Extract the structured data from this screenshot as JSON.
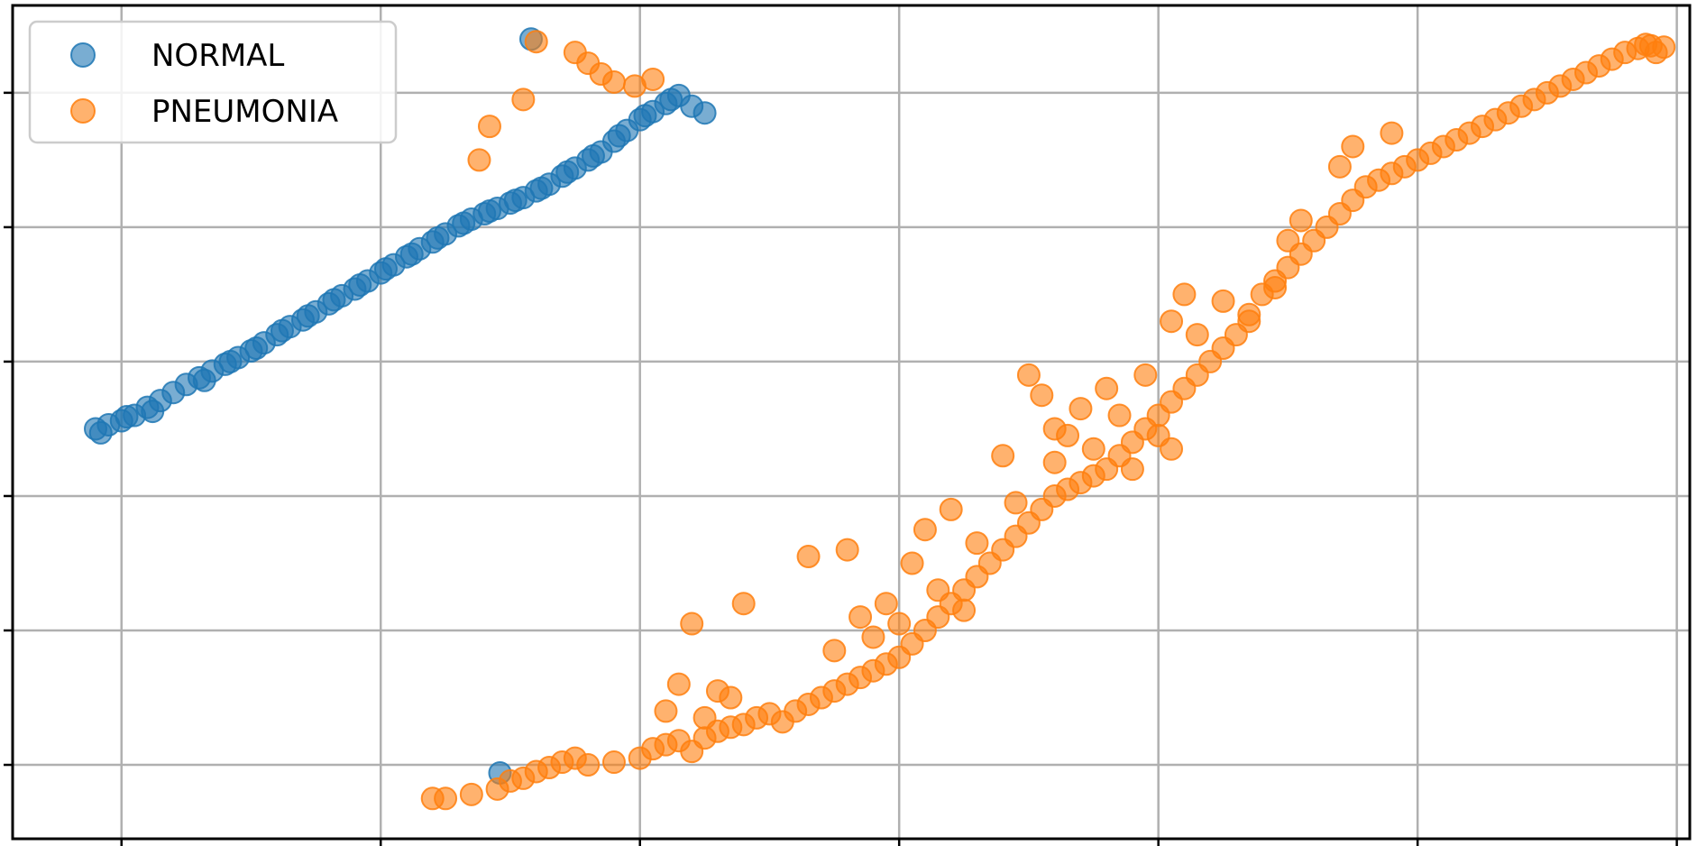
{
  "chart_data": {
    "type": "scatter",
    "title": "",
    "xlabel": "",
    "ylabel": "",
    "xlim": [
      -0.42,
      6.05
    ],
    "ylim": [
      -0.55,
      5.65
    ],
    "grid": true,
    "legend_placement": "upper-left",
    "xticks": [
      0,
      1,
      2,
      3,
      4,
      5,
      6
    ],
    "yticks": [
      0,
      1,
      2,
      3,
      4,
      5
    ],
    "tick_labels_visible": false,
    "series": [
      {
        "name": "NORMAL",
        "color": "#1f77b4",
        "points": [
          [
            -0.1,
            2.5
          ],
          [
            -0.05,
            2.53
          ],
          [
            0,
            2.56
          ],
          [
            0.05,
            2.6
          ],
          [
            0.1,
            2.66
          ],
          [
            0.15,
            2.71
          ],
          [
            0.2,
            2.77
          ],
          [
            0.25,
            2.83
          ],
          [
            0.3,
            2.88
          ],
          [
            0.35,
            2.93
          ],
          [
            0.4,
            2.98
          ],
          [
            0.45,
            3.03
          ],
          [
            0.5,
            3.08
          ],
          [
            0.55,
            3.14
          ],
          [
            0.6,
            3.2
          ],
          [
            0.65,
            3.26
          ],
          [
            0.7,
            3.31
          ],
          [
            0.75,
            3.37
          ],
          [
            0.8,
            3.43
          ],
          [
            0.85,
            3.49
          ],
          [
            0.9,
            3.54
          ],
          [
            0.95,
            3.6
          ],
          [
            1,
            3.66
          ],
          [
            1.05,
            3.72
          ],
          [
            1.1,
            3.78
          ],
          [
            1.15,
            3.84
          ],
          [
            1.2,
            3.89
          ],
          [
            1.25,
            3.95
          ],
          [
            1.3,
            4.01
          ],
          [
            1.35,
            4.06
          ],
          [
            1.4,
            4.1
          ],
          [
            1.45,
            4.14
          ],
          [
            1.5,
            4.18
          ],
          [
            1.55,
            4.22
          ],
          [
            1.6,
            4.27
          ],
          [
            1.65,
            4.32
          ],
          [
            1.7,
            4.38
          ],
          [
            1.75,
            4.44
          ],
          [
            1.8,
            4.5
          ],
          [
            1.85,
            4.56
          ],
          [
            1.9,
            4.64
          ],
          [
            1.95,
            4.72
          ],
          [
            2,
            4.8
          ],
          [
            2.05,
            4.86
          ],
          [
            2.1,
            4.92
          ],
          [
            2.15,
            4.98
          ],
          [
            2.2,
            4.9
          ],
          [
            2.25,
            4.85
          ],
          [
            -0.08,
            2.47
          ],
          [
            0.12,
            2.63
          ],
          [
            0.32,
            2.86
          ],
          [
            0.52,
            3.1
          ],
          [
            0.72,
            3.34
          ],
          [
            0.92,
            3.57
          ],
          [
            1.12,
            3.8
          ],
          [
            1.32,
            4.03
          ],
          [
            1.52,
            4.2
          ],
          [
            1.72,
            4.41
          ],
          [
            1.92,
            4.68
          ],
          [
            2.12,
            4.95
          ],
          [
            0.02,
            2.59
          ],
          [
            0.42,
            3.0
          ],
          [
            0.62,
            3.23
          ],
          [
            0.82,
            3.46
          ],
          [
            1.02,
            3.69
          ],
          [
            1.22,
            3.92
          ],
          [
            1.42,
            4.12
          ],
          [
            1.62,
            4.29
          ],
          [
            1.82,
            4.53
          ],
          [
            2.02,
            4.83
          ],
          [
            1.58,
            5.4
          ],
          [
            1.46,
            -0.06
          ]
        ]
      },
      {
        "name": "PNEUMONIA",
        "color": "#ff7f0e",
        "points": [
          [
            1.6,
            5.38
          ],
          [
            1.75,
            5.3
          ],
          [
            1.8,
            5.22
          ],
          [
            1.85,
            5.14
          ],
          [
            1.9,
            5.08
          ],
          [
            1.98,
            5.05
          ],
          [
            2.05,
            5.1
          ],
          [
            1.55,
            4.95
          ],
          [
            1.42,
            4.75
          ],
          [
            1.38,
            4.5
          ],
          [
            1.2,
            -0.25
          ],
          [
            1.25,
            -0.25
          ],
          [
            1.35,
            -0.22
          ],
          [
            1.45,
            -0.18
          ],
          [
            1.5,
            -0.12
          ],
          [
            1.55,
            -0.1
          ],
          [
            1.6,
            -0.05
          ],
          [
            1.65,
            -0.02
          ],
          [
            1.7,
            0.02
          ],
          [
            1.75,
            0.05
          ],
          [
            1.8,
            0.0
          ],
          [
            1.9,
            0.02
          ],
          [
            2,
            0.05
          ],
          [
            2.05,
            0.12
          ],
          [
            2.1,
            0.15
          ],
          [
            2.15,
            0.18
          ],
          [
            2.2,
            0.1
          ],
          [
            2.25,
            0.2
          ],
          [
            2.3,
            0.25
          ],
          [
            2.35,
            0.28
          ],
          [
            2.4,
            0.3
          ],
          [
            2.45,
            0.35
          ],
          [
            2.5,
            0.38
          ],
          [
            2.55,
            0.32
          ],
          [
            2.6,
            0.4
          ],
          [
            2.65,
            0.45
          ],
          [
            2.7,
            0.5
          ],
          [
            2.75,
            0.55
          ],
          [
            2.8,
            0.6
          ],
          [
            2.85,
            0.65
          ],
          [
            2.9,
            0.7
          ],
          [
            2.95,
            0.75
          ],
          [
            3,
            0.8
          ],
          [
            3.05,
            0.9
          ],
          [
            3.1,
            1.0
          ],
          [
            3.15,
            1.1
          ],
          [
            3.2,
            1.2
          ],
          [
            3.25,
            1.3
          ],
          [
            3.3,
            1.4
          ],
          [
            3.35,
            1.5
          ],
          [
            3.4,
            1.6
          ],
          [
            3.45,
            1.7
          ],
          [
            3.5,
            1.8
          ],
          [
            3.55,
            1.9
          ],
          [
            3.6,
            2.0
          ],
          [
            3.65,
            2.05
          ],
          [
            3.7,
            2.1
          ],
          [
            3.75,
            2.15
          ],
          [
            3.8,
            2.2
          ],
          [
            3.85,
            2.3
          ],
          [
            3.9,
            2.4
          ],
          [
            3.95,
            2.5
          ],
          [
            4,
            2.6
          ],
          [
            4.05,
            2.7
          ],
          [
            4.1,
            2.8
          ],
          [
            4.15,
            2.9
          ],
          [
            4.2,
            3.0
          ],
          [
            4.25,
            3.1
          ],
          [
            4.3,
            3.2
          ],
          [
            4.35,
            3.35
          ],
          [
            4.4,
            3.5
          ],
          [
            4.45,
            3.6
          ],
          [
            4.5,
            3.7
          ],
          [
            4.55,
            3.8
          ],
          [
            4.6,
            3.9
          ],
          [
            4.65,
            4.0
          ],
          [
            4.7,
            4.1
          ],
          [
            4.75,
            4.2
          ],
          [
            4.8,
            4.3
          ],
          [
            4.85,
            4.35
          ],
          [
            4.9,
            4.4
          ],
          [
            4.95,
            4.45
          ],
          [
            5,
            4.5
          ],
          [
            5.05,
            4.55
          ],
          [
            5.1,
            4.6
          ],
          [
            5.15,
            4.65
          ],
          [
            5.2,
            4.7
          ],
          [
            5.25,
            4.75
          ],
          [
            5.3,
            4.8
          ],
          [
            5.35,
            4.85
          ],
          [
            5.4,
            4.9
          ],
          [
            5.45,
            4.95
          ],
          [
            5.5,
            5.0
          ],
          [
            5.55,
            5.05
          ],
          [
            5.6,
            5.1
          ],
          [
            5.65,
            5.15
          ],
          [
            5.7,
            5.2
          ],
          [
            5.75,
            5.25
          ],
          [
            5.8,
            5.3
          ],
          [
            5.85,
            5.33
          ],
          [
            5.9,
            5.35
          ],
          [
            5.95,
            5.34
          ],
          [
            5.92,
            5.3
          ],
          [
            5.88,
            5.36
          ],
          [
            2.2,
            1.05
          ],
          [
            2.3,
            0.55
          ],
          [
            2.4,
            1.2
          ],
          [
            2.65,
            1.55
          ],
          [
            2.8,
            1.6
          ],
          [
            2.95,
            1.2
          ],
          [
            3.05,
            1.5
          ],
          [
            3.1,
            1.75
          ],
          [
            3.2,
            1.9
          ],
          [
            3.4,
            2.3
          ],
          [
            3.5,
            2.9
          ],
          [
            3.55,
            2.75
          ],
          [
            3.6,
            2.5
          ],
          [
            3.7,
            2.65
          ],
          [
            3.8,
            2.8
          ],
          [
            3.85,
            2.6
          ],
          [
            3.95,
            2.9
          ],
          [
            4.05,
            3.3
          ],
          [
            4.1,
            3.5
          ],
          [
            4.15,
            3.2
          ],
          [
            4.25,
            3.45
          ],
          [
            4.35,
            3.3
          ],
          [
            4.45,
            3.55
          ],
          [
            4.5,
            3.9
          ],
          [
            4.55,
            4.05
          ],
          [
            4.7,
            4.45
          ],
          [
            4.75,
            4.6
          ],
          [
            4.9,
            4.7
          ],
          [
            2.1,
            0.4
          ],
          [
            2.15,
            0.6
          ],
          [
            2.25,
            0.35
          ],
          [
            2.35,
            0.5
          ],
          [
            2.75,
            0.85
          ],
          [
            2.85,
            1.1
          ],
          [
            2.9,
            0.95
          ],
          [
            3.0,
            1.05
          ],
          [
            3.15,
            1.3
          ],
          [
            3.25,
            1.15
          ],
          [
            3.3,
            1.65
          ],
          [
            3.45,
            1.95
          ],
          [
            3.6,
            2.25
          ],
          [
            3.65,
            2.45
          ],
          [
            3.75,
            2.35
          ],
          [
            3.9,
            2.2
          ],
          [
            4.0,
            2.45
          ],
          [
            4.05,
            2.35
          ]
        ]
      }
    ]
  }
}
